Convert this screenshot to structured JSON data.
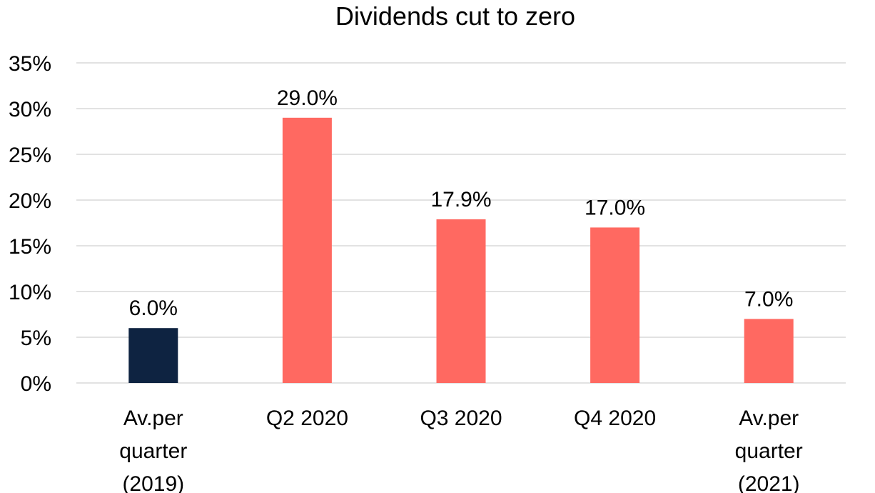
{
  "chart_data": {
    "type": "bar",
    "title": "Dividends cut to zero",
    "categories": [
      "Av.per quarter (2019)",
      "Q2 2020",
      "Q3 2020",
      "Q4 2020",
      "Av.per quarter (2021)"
    ],
    "category_lines": [
      [
        "Av.per",
        "quarter",
        "(2019)"
      ],
      [
        "Q2 2020"
      ],
      [
        "Q3 2020"
      ],
      [
        "Q4 2020"
      ],
      [
        "Av.per",
        "quarter",
        "(2021)"
      ]
    ],
    "values": [
      6.0,
      29.0,
      17.9,
      17.0,
      7.0
    ],
    "data_labels": [
      "6.0%",
      "29.0%",
      "17.9%",
      "17.0%",
      "7.0%"
    ],
    "bar_colors": [
      "#0e2341",
      "#ff6961",
      "#ff6961",
      "#ff6961",
      "#ff6961"
    ],
    "ylim": [
      0,
      35
    ],
    "yticks": [
      0,
      5,
      10,
      15,
      20,
      25,
      30,
      35
    ],
    "ytick_labels": [
      "0%",
      "5%",
      "10%",
      "15%",
      "20%",
      "25%",
      "30%",
      "35%"
    ],
    "xlabel": "",
    "ylabel": "",
    "grid": true,
    "gridline_color": "#d9d9d9",
    "legend": "none"
  }
}
